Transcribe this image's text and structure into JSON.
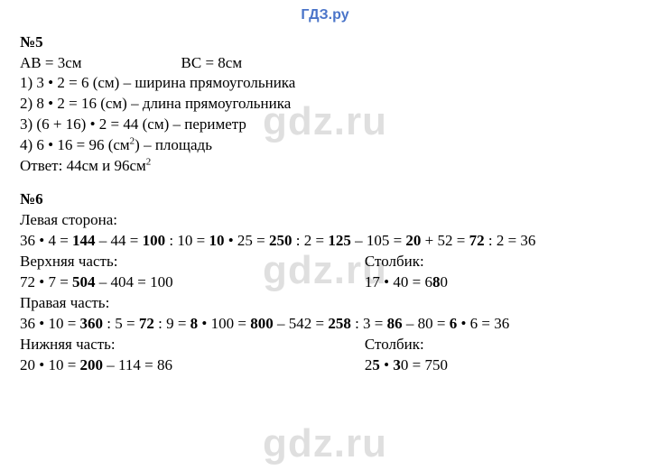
{
  "header": "ГДЗ.ру",
  "watermark": "gdz.ru",
  "sec5": {
    "title": "№5",
    "given_a": "AB = 3см",
    "given_b": "BC = 8см",
    "l1": "1) 3 • 2 = 6 (см) – ширина прямоугольника",
    "l2": "2) 8 • 2 = 16 (см) – длина прямоугольника",
    "l3": "3) (6 + 16) • 2 = 44 (см) – периметр",
    "l4_a": "4) 6 • 16 = 96 (см",
    "l4_sup": "2",
    "l4_b": ") – площадь",
    "ans_a": "Ответ: 44см и 96см",
    "ans_sup": "2"
  },
  "sec6": {
    "title": "№6",
    "left_label": "Левая сторона:",
    "left_line": {
      "p": [
        "36 • 4 = ",
        "144",
        " – 44 = ",
        "100",
        " : 10 = ",
        "10",
        " • 25 = ",
        "250",
        " : 2 = ",
        "125",
        " – 105 = ",
        "20",
        " + 52 = ",
        "72",
        " : 2 = 36"
      ]
    },
    "top_label": "Верхняя часть:",
    "top_line": {
      "p": [
        "72 • 7 = ",
        "504",
        " – 404 = 100"
      ]
    },
    "col1_label": "Столбик:",
    "col1_line": {
      "p": [
        "17 • 40 = 6",
        "8",
        "0"
      ]
    },
    "right_label": "Правая часть:",
    "right_line": {
      "p": [
        "36 • 10 = ",
        "360",
        " : 5 = ",
        "72",
        " : 9 = ",
        "8",
        " • 100 = ",
        "800",
        " – 542 = ",
        "258",
        " : 3 = ",
        "86",
        " – 80 = ",
        "6",
        " • 6 = 36"
      ]
    },
    "bottom_label": "Нижняя часть:",
    "bottom_line": {
      "p": [
        "20 • 10 = ",
        "200",
        " – 114 = 86"
      ]
    },
    "col2_label": "Столбик:",
    "col2_line": {
      "p": [
        "2",
        "5",
        " • ",
        "3",
        "0 = 750"
      ]
    }
  }
}
